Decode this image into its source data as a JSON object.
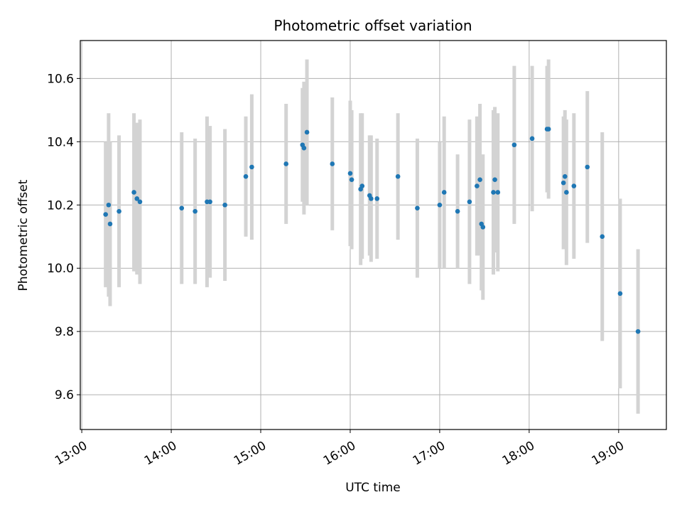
{
  "chart_data": {
    "type": "scatter",
    "title": "Photometric offset variation",
    "xlabel": "UTC time",
    "ylabel": "Photometric offset",
    "x_ticks": [
      "13:00",
      "14:00",
      "15:00",
      "16:00",
      "17:00",
      "18:00",
      "19:00"
    ],
    "y_ticks": [
      "9.6",
      "9.8",
      "10.0",
      "10.2",
      "10.4",
      "10.6"
    ],
    "y_tick_values": [
      9.6,
      9.8,
      10.0,
      10.2,
      10.4,
      10.6
    ],
    "xlim": [
      "12:59",
      "19:32"
    ],
    "ylim": [
      9.49,
      10.72
    ],
    "grid": true,
    "point_color": "#1f77b4",
    "errorbar_color": "#d3d3d3",
    "series": [
      {
        "x": [
          "13:16",
          "13:18",
          "13:19",
          "13:25",
          "13:35",
          "13:37",
          "13:39",
          "14:07",
          "14:16",
          "14:24",
          "14:26",
          "14:36",
          "14:50",
          "14:54",
          "15:17",
          "15:28",
          "15:29",
          "15:31",
          "15:48",
          "16:00",
          "16:01",
          "16:07",
          "16:08",
          "16:13",
          "16:14",
          "16:18",
          "16:32",
          "16:45",
          "17:00",
          "17:03",
          "17:12",
          "17:20",
          "17:25",
          "17:27",
          "17:28",
          "17:29",
          "17:36",
          "17:37",
          "17:39",
          "17:50",
          "18:02",
          "18:12",
          "18:13",
          "18:23",
          "18:24",
          "18:25",
          "18:30",
          "18:39",
          "18:49",
          "19:01",
          "19:13"
        ],
        "y": [
          10.17,
          10.2,
          10.14,
          10.18,
          10.24,
          10.22,
          10.21,
          10.19,
          10.18,
          10.21,
          10.21,
          10.2,
          10.29,
          10.32,
          10.33,
          10.39,
          10.38,
          10.43,
          10.33,
          10.3,
          10.28,
          10.25,
          10.26,
          10.23,
          10.22,
          10.22,
          10.29,
          10.19,
          10.2,
          10.24,
          10.18,
          10.21,
          10.26,
          10.28,
          10.14,
          10.13,
          10.24,
          10.28,
          10.24,
          10.39,
          10.41,
          10.44,
          10.44,
          10.27,
          10.29,
          10.24,
          10.26,
          10.32,
          10.1,
          9.92,
          9.8
        ],
        "yerr": [
          0.23,
          0.29,
          0.26,
          0.24,
          0.25,
          0.24,
          0.26,
          0.24,
          0.23,
          0.27,
          0.24,
          0.24,
          0.19,
          0.23,
          0.19,
          0.18,
          0.21,
          0.23,
          0.21,
          0.23,
          0.22,
          0.24,
          0.23,
          0.19,
          0.2,
          0.19,
          0.2,
          0.22,
          0.2,
          0.24,
          0.18,
          0.26,
          0.22,
          0.24,
          0.21,
          0.23,
          0.26,
          0.23,
          0.25,
          0.25,
          0.23,
          0.2,
          0.22,
          0.21,
          0.21,
          0.23,
          0.23,
          0.24,
          0.33,
          0.3,
          0.26
        ]
      }
    ]
  }
}
